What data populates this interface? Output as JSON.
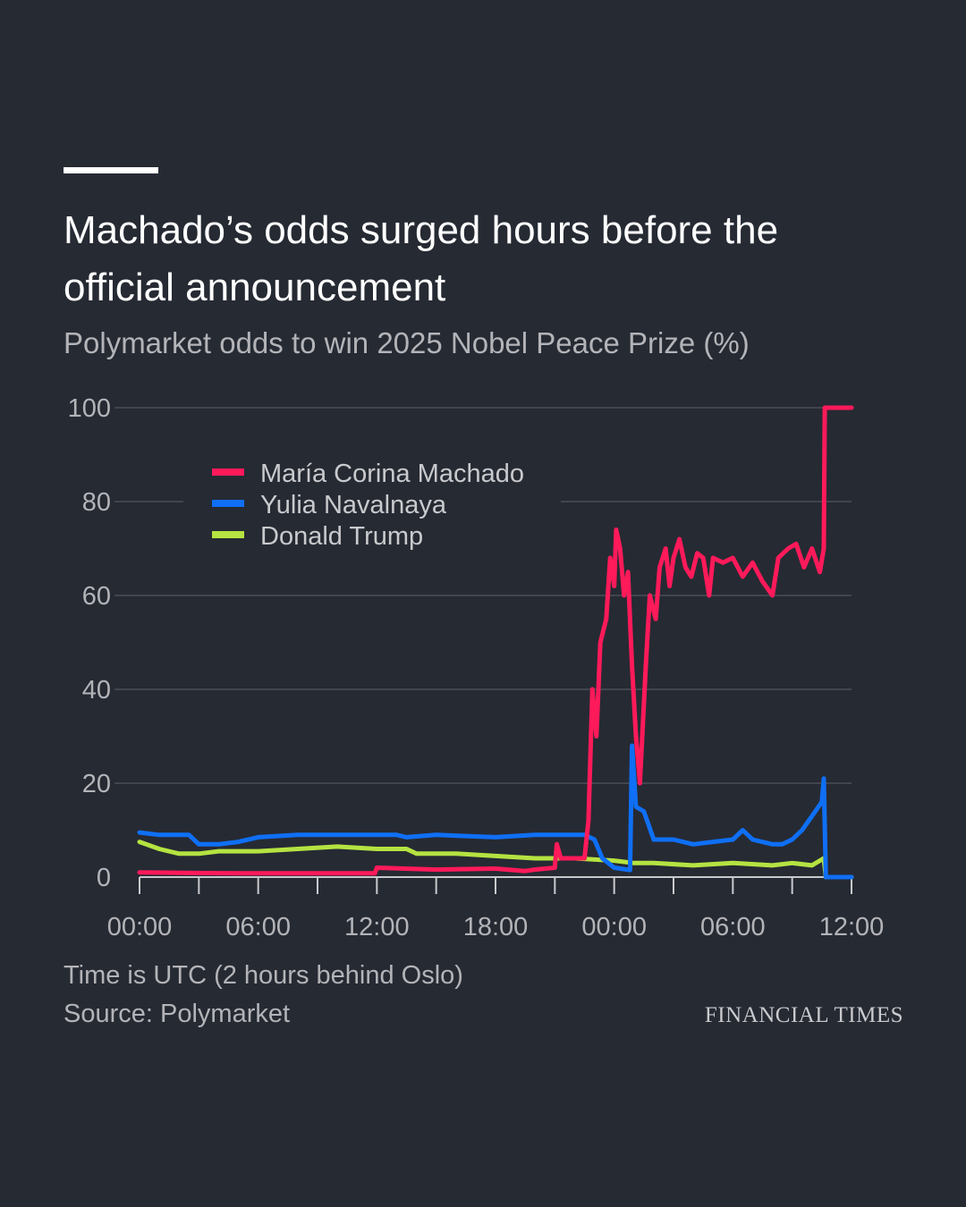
{
  "title": "Machado’s odds surged hours before the official announcement",
  "subtitle": "Polymarket odds to win 2025 Nobel Peace Prize (%)",
  "notes": {
    "time": "Time is UTC (2 hours behind Oslo)",
    "source": "Source: Polymarket"
  },
  "brand": "FINANCIAL TIMES",
  "colors": {
    "background": "#262a33",
    "grid": "#4a4e57",
    "machado": "#ff1a5a",
    "navalnaya": "#0f6ff5",
    "trump": "#b5e341"
  },
  "chart_data": {
    "type": "line",
    "title": "Polymarket odds to win 2025 Nobel Peace Prize (%)",
    "xlabel": "",
    "ylabel": "",
    "ylim": [
      0,
      100
    ],
    "xlim": [
      0,
      36
    ],
    "x_unit": "hours since 00:00 UTC on the first day shown",
    "yticks": [
      0,
      20,
      40,
      60,
      80,
      100
    ],
    "xticks": [
      {
        "x": 0,
        "label": "00:00"
      },
      {
        "x": 6,
        "label": "06:00"
      },
      {
        "x": 12,
        "label": "12:00"
      },
      {
        "x": 18,
        "label": "18:00"
      },
      {
        "x": 24,
        "label": "00:00"
      },
      {
        "x": 30,
        "label": "06:00"
      },
      {
        "x": 36,
        "label": "12:00"
      }
    ],
    "grid": true,
    "legend_position": "top-left",
    "series": [
      {
        "name": "María Corina Machado",
        "color": "#ff1a5a",
        "points": [
          [
            0,
            1
          ],
          [
            5,
            0.8
          ],
          [
            11.9,
            0.8
          ],
          [
            12,
            2
          ],
          [
            15,
            1.6
          ],
          [
            18,
            1.8
          ],
          [
            19.5,
            1.3
          ],
          [
            20,
            1.6
          ],
          [
            21,
            2
          ],
          [
            21.1,
            7
          ],
          [
            21.3,
            4
          ],
          [
            22.5,
            4
          ],
          [
            22.7,
            12
          ],
          [
            22.9,
            40
          ],
          [
            23.1,
            30
          ],
          [
            23.3,
            50
          ],
          [
            23.6,
            55
          ],
          [
            23.8,
            68
          ],
          [
            24,
            62
          ],
          [
            24.1,
            74
          ],
          [
            24.3,
            70
          ],
          [
            24.5,
            60
          ],
          [
            24.7,
            65
          ],
          [
            24.9,
            45
          ],
          [
            25.1,
            30
          ],
          [
            25.3,
            20
          ],
          [
            25.6,
            45
          ],
          [
            25.8,
            60
          ],
          [
            26.1,
            55
          ],
          [
            26.3,
            66
          ],
          [
            26.6,
            70
          ],
          [
            26.8,
            62
          ],
          [
            27,
            68
          ],
          [
            27.3,
            72
          ],
          [
            27.6,
            66
          ],
          [
            27.9,
            64
          ],
          [
            28.2,
            69
          ],
          [
            28.5,
            68
          ],
          [
            28.8,
            60
          ],
          [
            29,
            68
          ],
          [
            29.5,
            67
          ],
          [
            30,
            68
          ],
          [
            30.5,
            64
          ],
          [
            31,
            67
          ],
          [
            31.5,
            63
          ],
          [
            32,
            60
          ],
          [
            32.3,
            68
          ],
          [
            32.8,
            70
          ],
          [
            33.2,
            71
          ],
          [
            33.6,
            66
          ],
          [
            34,
            70
          ],
          [
            34.4,
            65
          ],
          [
            34.6,
            70
          ],
          [
            34.65,
            100
          ],
          [
            36,
            100
          ]
        ]
      },
      {
        "name": "Yulia Navalnaya",
        "color": "#0f6ff5",
        "points": [
          [
            0,
            9.5
          ],
          [
            1,
            9
          ],
          [
            2.5,
            9
          ],
          [
            3,
            7
          ],
          [
            4,
            7
          ],
          [
            5,
            7.5
          ],
          [
            6,
            8.5
          ],
          [
            8,
            9
          ],
          [
            10,
            9
          ],
          [
            13,
            9
          ],
          [
            13.5,
            8.5
          ],
          [
            15,
            9
          ],
          [
            18,
            8.5
          ],
          [
            20,
            9
          ],
          [
            22.5,
            9
          ],
          [
            23,
            8
          ],
          [
            23.4,
            4
          ],
          [
            24,
            2
          ],
          [
            24.8,
            1.5
          ],
          [
            24.9,
            28
          ],
          [
            25.1,
            15
          ],
          [
            25.5,
            14
          ],
          [
            26,
            8
          ],
          [
            27,
            8
          ],
          [
            28,
            7
          ],
          [
            29,
            7.5
          ],
          [
            30,
            8
          ],
          [
            30.5,
            10
          ],
          [
            31,
            8
          ],
          [
            32,
            7
          ],
          [
            32.5,
            7
          ],
          [
            33,
            8
          ],
          [
            33.5,
            10
          ],
          [
            34,
            13
          ],
          [
            34.5,
            16
          ],
          [
            34.6,
            21
          ],
          [
            34.7,
            0
          ],
          [
            36,
            0
          ]
        ]
      },
      {
        "name": "Donald Trump",
        "color": "#b5e341",
        "points": [
          [
            0,
            7.5
          ],
          [
            1,
            6
          ],
          [
            2,
            5
          ],
          [
            3,
            5
          ],
          [
            4,
            5.5
          ],
          [
            6,
            5.5
          ],
          [
            8,
            6
          ],
          [
            10,
            6.5
          ],
          [
            12,
            6
          ],
          [
            13.5,
            6
          ],
          [
            14,
            5
          ],
          [
            16,
            5
          ],
          [
            18,
            4.5
          ],
          [
            20,
            4
          ],
          [
            22,
            4
          ],
          [
            24,
            3.5
          ],
          [
            25,
            3
          ],
          [
            26,
            3
          ],
          [
            28,
            2.5
          ],
          [
            30,
            3
          ],
          [
            32,
            2.5
          ],
          [
            33,
            3
          ],
          [
            34,
            2.5
          ],
          [
            34.6,
            4
          ],
          [
            34.7,
            0
          ],
          [
            36,
            0
          ]
        ]
      }
    ]
  }
}
